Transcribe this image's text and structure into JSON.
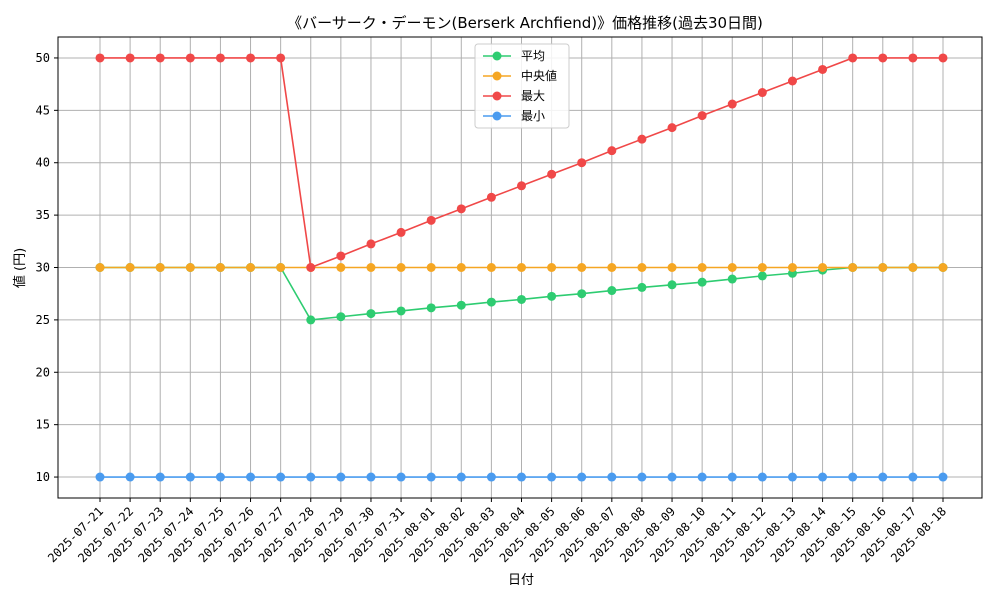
{
  "chart_data": {
    "type": "line",
    "title": "《バーサーク・デーモン(Berserk Archfiend)》価格推移(過去30日間)",
    "xlabel": "日付",
    "ylabel": "値 (円)",
    "ylim": [
      8,
      52
    ],
    "yticks": [
      10,
      15,
      20,
      25,
      30,
      35,
      40,
      45,
      50
    ],
    "grid": true,
    "legend_position": "top-center",
    "categories": [
      "2025-07-21",
      "2025-07-22",
      "2025-07-23",
      "2025-07-24",
      "2025-07-25",
      "2025-07-26",
      "2025-07-27",
      "2025-07-28",
      "2025-07-29",
      "2025-07-30",
      "2025-07-31",
      "2025-08-01",
      "2025-08-02",
      "2025-08-03",
      "2025-08-04",
      "2025-08-05",
      "2025-08-06",
      "2025-08-07",
      "2025-08-08",
      "2025-08-09",
      "2025-08-10",
      "2025-08-11",
      "2025-08-12",
      "2025-08-13",
      "2025-08-14",
      "2025-08-15",
      "2025-08-16",
      "2025-08-17",
      "2025-08-18"
    ],
    "series": [
      {
        "name": "平均",
        "color": "#2ecc71",
        "values": [
          30,
          30,
          30,
          30,
          30,
          30,
          30,
          25,
          25.3,
          25.6,
          25.85,
          26.15,
          26.4,
          26.7,
          26.95,
          27.25,
          27.5,
          27.8,
          28.1,
          28.35,
          28.6,
          28.9,
          29.2,
          29.45,
          29.75,
          30,
          30,
          30,
          30
        ]
      },
      {
        "name": "中央値",
        "color": "#f5a623",
        "values": [
          30,
          30,
          30,
          30,
          30,
          30,
          30,
          30,
          30,
          30,
          30,
          30,
          30,
          30,
          30,
          30,
          30,
          30,
          30,
          30,
          30,
          30,
          30,
          30,
          30,
          30,
          30,
          30,
          30
        ]
      },
      {
        "name": "最大",
        "color": "#f04848",
        "values": [
          50,
          50,
          50,
          50,
          50,
          50,
          50,
          30,
          31.1,
          32.25,
          33.35,
          34.5,
          35.6,
          36.7,
          37.8,
          38.9,
          40,
          41.15,
          42.25,
          43.35,
          44.5,
          45.6,
          46.7,
          47.8,
          48.9,
          50,
          50,
          50,
          50
        ]
      },
      {
        "name": "最小",
        "color": "#4a9bef",
        "values": [
          10,
          10,
          10,
          10,
          10,
          10,
          10,
          10,
          10,
          10,
          10,
          10,
          10,
          10,
          10,
          10,
          10,
          10,
          10,
          10,
          10,
          10,
          10,
          10,
          10,
          10,
          10,
          10,
          10
        ]
      }
    ]
  }
}
